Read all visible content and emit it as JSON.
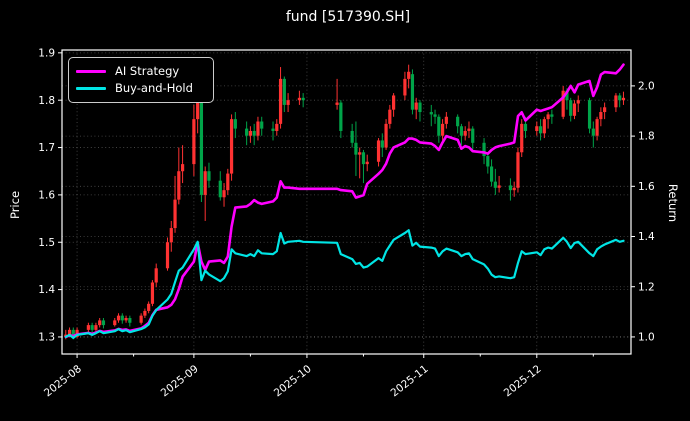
{
  "title": "fund [517390.SH]",
  "axes": {
    "left_label": "Price",
    "right_label": "Return",
    "left_ticks": [
      1.3,
      1.4,
      1.5,
      1.6,
      1.7,
      1.8,
      1.9
    ],
    "right_ticks": [
      1.0,
      1.2,
      1.4,
      1.6,
      1.8,
      2.0
    ],
    "x_ticks": [
      "2025-08",
      "2025-09",
      "2025-10",
      "2025-11",
      "2025-12"
    ],
    "x_minor_ticks": [
      "08-16",
      "09-16",
      "10-16",
      "11-16",
      "12-16"
    ]
  },
  "legend": {
    "position": "upper left",
    "items": [
      {
        "label": "AI Strategy",
        "color": "#ff00ff"
      },
      {
        "label": "Buy-and-Hold",
        "color": "#00e5e5"
      }
    ]
  },
  "colors": {
    "background": "#000000",
    "text": "#ffffff",
    "spine": "#ffffff",
    "grid": "#ffffff",
    "candle_up": "#ff3232",
    "candle_down": "#00a449",
    "ai_line": "#ff00ff",
    "bh_line": "#00e5e5",
    "legend_border": "#cccccc"
  },
  "chart_data": {
    "type": "candlestick+line",
    "title": "fund [517390.SH]",
    "xlabel": "",
    "ylabel_left": "Price",
    "ylabel_right": "Return",
    "grid": true,
    "legend_position": "upper left",
    "xlim": [
      "07-28",
      "12-26"
    ],
    "ylim_price": [
      1.264,
      1.906
    ],
    "ylim_return": [
      0.932,
      2.143
    ],
    "candle_convention": "red-up-green-down",
    "dates": [
      "07-29",
      "07-30",
      "07-31",
      "08-01",
      "08-04",
      "08-05",
      "08-06",
      "08-07",
      "08-08",
      "08-11",
      "08-12",
      "08-13",
      "08-14",
      "08-15",
      "08-18",
      "08-19",
      "08-20",
      "08-21",
      "08-22",
      "08-25",
      "08-26",
      "08-27",
      "08-28",
      "08-29",
      "09-01",
      "09-02",
      "09-03",
      "09-04",
      "09-05",
      "09-08",
      "09-09",
      "09-10",
      "09-11",
      "09-12",
      "09-15",
      "09-16",
      "09-17",
      "09-18",
      "09-19",
      "09-22",
      "09-23",
      "09-24",
      "09-25",
      "09-26",
      "09-29",
      "09-30",
      "10-09",
      "10-10",
      "10-13",
      "10-14",
      "10-15",
      "10-16",
      "10-17",
      "10-20",
      "10-21",
      "10-22",
      "10-23",
      "10-24",
      "10-27",
      "10-28",
      "10-29",
      "10-30",
      "10-31",
      "11-03",
      "11-04",
      "11-05",
      "11-06",
      "11-07",
      "11-10",
      "11-11",
      "11-12",
      "11-13",
      "11-14",
      "11-17",
      "11-18",
      "11-19",
      "11-20",
      "11-21",
      "11-24",
      "11-25",
      "11-26",
      "11-27",
      "11-28",
      "12-01",
      "12-02",
      "12-03",
      "12-04",
      "12-05",
      "12-08",
      "12-09",
      "12-10",
      "12-11",
      "12-12",
      "12-15",
      "12-16",
      "12-17",
      "12-18",
      "12-19",
      "12-22",
      "12-23",
      "12-24"
    ],
    "ohlc": [
      [
        1.3,
        1.315,
        1.295,
        1.305
      ],
      [
        1.305,
        1.32,
        1.3,
        1.315
      ],
      [
        1.315,
        1.32,
        1.295,
        1.3
      ],
      [
        1.3,
        1.32,
        1.298,
        1.315
      ],
      [
        1.315,
        1.33,
        1.31,
        1.325
      ],
      [
        1.325,
        1.33,
        1.308,
        1.315
      ],
      [
        1.315,
        1.33,
        1.312,
        1.325
      ],
      [
        1.325,
        1.34,
        1.32,
        1.335
      ],
      [
        1.335,
        1.34,
        1.318,
        1.325
      ],
      [
        1.325,
        1.34,
        1.322,
        1.335
      ],
      [
        1.335,
        1.35,
        1.33,
        1.345
      ],
      [
        1.345,
        1.35,
        1.328,
        1.335
      ],
      [
        1.335,
        1.345,
        1.33,
        1.34
      ],
      [
        1.34,
        1.345,
        1.322,
        1.33
      ],
      [
        1.33,
        1.35,
        1.326,
        1.345
      ],
      [
        1.345,
        1.36,
        1.34,
        1.355
      ],
      [
        1.355,
        1.375,
        1.35,
        1.37
      ],
      [
        1.37,
        1.42,
        1.365,
        1.415
      ],
      [
        1.415,
        1.455,
        1.405,
        1.445
      ],
      [
        1.445,
        1.51,
        1.44,
        1.5
      ],
      [
        1.5,
        1.545,
        1.48,
        1.53
      ],
      [
        1.53,
        1.64,
        1.52,
        1.59
      ],
      [
        1.59,
        1.7,
        1.58,
        1.65
      ],
      [
        1.65,
        1.705,
        1.625,
        1.665
      ],
      [
        1.665,
        1.79,
        1.64,
        1.76
      ],
      [
        1.76,
        1.875,
        1.73,
        1.8
      ],
      [
        1.8,
        1.81,
        1.585,
        1.6
      ],
      [
        1.6,
        1.66,
        1.545,
        1.65
      ],
      [
        1.65,
        1.668,
        1.615,
        1.63
      ],
      [
        1.63,
        1.65,
        1.588,
        1.595
      ],
      [
        1.595,
        1.625,
        1.575,
        1.61
      ],
      [
        1.61,
        1.655,
        1.6,
        1.645
      ],
      [
        1.645,
        1.77,
        1.63,
        1.76
      ],
      [
        1.76,
        1.775,
        1.72,
        1.74
      ],
      [
        1.74,
        1.755,
        1.705,
        1.725
      ],
      [
        1.725,
        1.745,
        1.71,
        1.735
      ],
      [
        1.735,
        1.75,
        1.705,
        1.725
      ],
      [
        1.725,
        1.765,
        1.715,
        1.755
      ],
      [
        1.755,
        1.765,
        1.725,
        1.74
      ],
      [
        1.74,
        1.755,
        1.715,
        1.735
      ],
      [
        1.735,
        1.76,
        1.725,
        1.75
      ],
      [
        1.75,
        1.87,
        1.74,
        1.845
      ],
      [
        1.845,
        1.85,
        1.775,
        1.79
      ],
      [
        1.79,
        1.815,
        1.775,
        1.8
      ],
      [
        1.8,
        1.82,
        1.79,
        1.805
      ],
      [
        1.805,
        1.815,
        1.785,
        1.8
      ],
      [
        1.79,
        1.845,
        1.78,
        1.795
      ],
      [
        1.795,
        1.8,
        1.72,
        1.735
      ],
      [
        1.735,
        1.75,
        1.7,
        1.71
      ],
      [
        1.71,
        1.755,
        1.64,
        1.685
      ],
      [
        1.685,
        1.7,
        1.635,
        1.69
      ],
      [
        1.69,
        1.695,
        1.625,
        1.665
      ],
      [
        1.665,
        1.685,
        1.65,
        1.67
      ],
      [
        1.67,
        1.72,
        1.66,
        1.715
      ],
      [
        1.715,
        1.73,
        1.68,
        1.7
      ],
      [
        1.7,
        1.76,
        1.695,
        1.75
      ],
      [
        1.75,
        1.79,
        1.74,
        1.78
      ],
      [
        1.78,
        1.815,
        1.765,
        1.81
      ],
      [
        1.81,
        1.86,
        1.8,
        1.845
      ],
      [
        1.845,
        1.875,
        1.825,
        1.86
      ],
      [
        1.855,
        1.865,
        1.77,
        1.78
      ],
      [
        1.78,
        1.805,
        1.76,
        1.795
      ],
      [
        1.795,
        1.8,
        1.755,
        1.775
      ],
      [
        1.775,
        1.79,
        1.745,
        1.77
      ],
      [
        1.77,
        1.78,
        1.75,
        1.765
      ],
      [
        1.765,
        1.77,
        1.71,
        1.725
      ],
      [
        1.725,
        1.76,
        1.715,
        1.75
      ],
      [
        1.75,
        1.775,
        1.74,
        1.765
      ],
      [
        1.765,
        1.77,
        1.73,
        1.745
      ],
      [
        1.745,
        1.75,
        1.705,
        1.725
      ],
      [
        1.725,
        1.745,
        1.715,
        1.735
      ],
      [
        1.735,
        1.755,
        1.72,
        1.74
      ],
      [
        1.74,
        1.745,
        1.695,
        1.71
      ],
      [
        1.71,
        1.72,
        1.665,
        1.682
      ],
      [
        1.682,
        1.69,
        1.645,
        1.66
      ],
      [
        1.66,
        1.675,
        1.618,
        1.628
      ],
      [
        1.628,
        1.655,
        1.6,
        1.615
      ],
      [
        1.615,
        1.64,
        1.605,
        1.62
      ],
      [
        1.62,
        1.635,
        1.588,
        1.61
      ],
      [
        1.61,
        1.628,
        1.596,
        1.615
      ],
      [
        1.615,
        1.7,
        1.605,
        1.69
      ],
      [
        1.69,
        1.76,
        1.68,
        1.75
      ],
      [
        1.75,
        1.765,
        1.72,
        1.735
      ],
      [
        1.735,
        1.755,
        1.725,
        1.745
      ],
      [
        1.745,
        1.76,
        1.715,
        1.73
      ],
      [
        1.73,
        1.765,
        1.72,
        1.76
      ],
      [
        1.76,
        1.775,
        1.74,
        1.77
      ],
      [
        1.77,
        1.78,
        1.75,
        1.765
      ],
      [
        1.765,
        1.83,
        1.76,
        1.82
      ],
      [
        1.82,
        1.825,
        1.78,
        1.8
      ],
      [
        1.8,
        1.805,
        1.755,
        1.767
      ],
      [
        1.767,
        1.8,
        1.76,
        1.793
      ],
      [
        1.793,
        1.81,
        1.775,
        1.8
      ],
      [
        1.8,
        1.805,
        1.73,
        1.74
      ],
      [
        1.74,
        1.755,
        1.7,
        1.725
      ],
      [
        1.725,
        1.765,
        1.715,
        1.76
      ],
      [
        1.76,
        1.785,
        1.745,
        1.775
      ],
      [
        1.775,
        1.795,
        1.76,
        1.785
      ],
      [
        1.785,
        1.815,
        1.775,
        1.81
      ],
      [
        1.81,
        1.815,
        1.785,
        1.8
      ],
      [
        1.8,
        1.818,
        1.79,
        1.805
      ]
    ],
    "series": [
      {
        "name": "AI Strategy",
        "axis": "return",
        "color": "#ff00ff",
        "values": [
          1.0,
          1.006,
          1.004,
          1.01,
          1.016,
          1.012,
          1.018,
          1.024,
          1.02,
          1.026,
          1.032,
          1.028,
          1.03,
          1.024,
          1.034,
          1.044,
          1.056,
          1.086,
          1.108,
          1.118,
          1.128,
          1.15,
          1.19,
          1.24,
          1.3,
          1.375,
          1.3,
          1.267,
          1.3,
          1.305,
          1.295,
          1.32,
          1.44,
          1.515,
          1.52,
          1.53,
          1.545,
          1.535,
          1.53,
          1.54,
          1.555,
          1.62,
          1.595,
          1.595,
          1.59,
          1.59,
          1.59,
          1.585,
          1.58,
          1.555,
          1.56,
          1.565,
          1.61,
          1.65,
          1.665,
          1.69,
          1.73,
          1.755,
          1.775,
          1.79,
          1.79,
          1.785,
          1.775,
          1.77,
          1.76,
          1.745,
          1.775,
          1.8,
          1.785,
          1.75,
          1.76,
          1.755,
          1.74,
          1.735,
          1.73,
          1.745,
          1.755,
          1.76,
          1.77,
          1.775,
          1.88,
          1.895,
          1.862,
          1.905,
          1.9,
          1.905,
          1.91,
          1.915,
          1.954,
          1.975,
          2.0,
          1.974,
          2.005,
          2.02,
          1.96,
          1.995,
          2.045,
          2.055,
          2.05,
          2.065,
          2.085
        ]
      },
      {
        "name": "Buy-and-Hold",
        "axis": "return",
        "color": "#00e5e5",
        "values": [
          1.0,
          1.008,
          0.996,
          1.008,
          1.015,
          1.008,
          1.015,
          1.023,
          1.015,
          1.023,
          1.031,
          1.023,
          1.027,
          1.019,
          1.031,
          1.038,
          1.05,
          1.084,
          1.107,
          1.149,
          1.172,
          1.218,
          1.264,
          1.276,
          1.349,
          1.379,
          1.226,
          1.264,
          1.249,
          1.222,
          1.234,
          1.261,
          1.349,
          1.333,
          1.322,
          1.33,
          1.322,
          1.345,
          1.333,
          1.33,
          1.341,
          1.414,
          1.372,
          1.379,
          1.383,
          1.379,
          1.375,
          1.33,
          1.31,
          1.291,
          1.295,
          1.276,
          1.28,
          1.314,
          1.303,
          1.341,
          1.364,
          1.387,
          1.414,
          1.425,
          1.364,
          1.375,
          1.36,
          1.356,
          1.352,
          1.322,
          1.341,
          1.352,
          1.337,
          1.322,
          1.33,
          1.333,
          1.31,
          1.289,
          1.272,
          1.248,
          1.238,
          1.241,
          1.234,
          1.238,
          1.295,
          1.341,
          1.33,
          1.337,
          1.326,
          1.349,
          1.356,
          1.352,
          1.395,
          1.379,
          1.354,
          1.374,
          1.379,
          1.333,
          1.322,
          1.349,
          1.36,
          1.368,
          1.387,
          1.379,
          1.383
        ]
      }
    ]
  }
}
